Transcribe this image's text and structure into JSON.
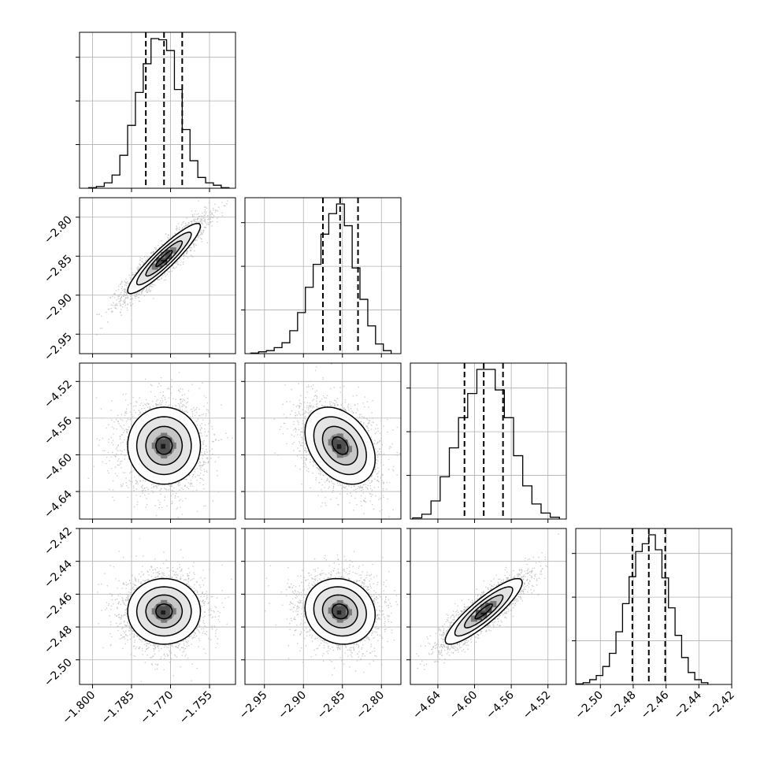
{
  "chart_data": {
    "type": "corner",
    "grid": true,
    "parameters": [
      {
        "range": [
          -1.805,
          -1.745
        ],
        "ticks": [
          -1.8,
          -1.785,
          -1.77,
          -1.755
        ],
        "tick_labels": [
          "−1.800",
          "−1.785",
          "−1.770",
          "−1.755"
        ],
        "quantiles": [
          -1.7795,
          -1.7725,
          -1.7655
        ],
        "histogram": {
          "bin_edges": [
            -1.8015,
            -1.7985,
            -1.7955,
            -1.7925,
            -1.7895,
            -1.7865,
            -1.7835,
            -1.7805,
            -1.7775,
            -1.7745,
            -1.7715,
            -1.7685,
            -1.7655,
            -1.7625,
            -1.7595,
            -1.7565,
            -1.7535,
            -1.7505,
            -1.7475
          ],
          "counts": [
            1,
            3,
            9,
            22,
            55,
            105,
            160,
            208,
            250,
            248,
            230,
            165,
            98,
            46,
            18,
            9,
            5,
            1
          ]
        }
      },
      {
        "range": [
          -2.975,
          -2.775
        ],
        "ticks": [
          -2.95,
          -2.9,
          -2.85,
          -2.8
        ],
        "tick_labels": [
          "−2.95",
          "−2.90",
          "−2.85",
          "−2.80"
        ],
        "quantiles": [
          -2.875,
          -2.853,
          -2.83
        ],
        "histogram": {
          "bin_edges": [
            -2.9675,
            -2.9575,
            -2.9475,
            -2.9375,
            -2.9275,
            -2.9175,
            -2.9075,
            -2.8975,
            -2.8875,
            -2.8775,
            -2.8675,
            -2.8575,
            -2.8475,
            -2.8375,
            -2.8275,
            -2.8175,
            -2.8075,
            -2.7975,
            -2.7875
          ],
          "counts": [
            1,
            3,
            5,
            10,
            18,
            38,
            68,
            110,
            148,
            198,
            232,
            248,
            212,
            142,
            90,
            46,
            16,
            5
          ]
        }
      },
      {
        "range": [
          -4.67,
          -4.5
        ],
        "ticks": [
          -4.64,
          -4.6,
          -4.56,
          -4.52
        ],
        "tick_labels": [
          "−4.64",
          "−4.60",
          "−4.56",
          "−4.52"
        ],
        "quantiles": [
          -4.611,
          -4.59,
          -4.569
        ],
        "histogram": {
          "bin_edges": [
            -4.6675,
            -4.6575,
            -4.6475,
            -4.6375,
            -4.6275,
            -4.6175,
            -4.6075,
            -4.5975,
            -4.5875,
            -4.5775,
            -4.5675,
            -4.5575,
            -4.5475,
            -4.5375,
            -4.5275,
            -4.5175,
            -4.5075
          ],
          "counts": [
            2,
            8,
            30,
            70,
            118,
            168,
            208,
            248,
            248,
            214,
            168,
            105,
            55,
            25,
            10,
            3
          ]
        }
      },
      {
        "range": [
          -2.515,
          -2.42
        ],
        "ticks": [
          -2.5,
          -2.48,
          -2.46,
          -2.44,
          -2.42
        ],
        "tick_labels": [
          "−2.50",
          "−2.48",
          "−2.46",
          "−2.44",
          "−2.42"
        ],
        "quantiles": [
          -2.4805,
          -2.4705,
          -2.4605
        ],
        "histogram": {
          "bin_edges": [
            -2.5145,
            -2.5105,
            -2.5065,
            -2.5025,
            -2.4985,
            -2.4945,
            -2.4905,
            -2.4865,
            -2.4825,
            -2.4785,
            -2.4745,
            -2.4705,
            -2.4665,
            -2.4625,
            -2.4585,
            -2.4545,
            -2.4505,
            -2.4465,
            -2.4425,
            -2.4385,
            -2.4345
          ],
          "counts": [
            1,
            3,
            8,
            15,
            30,
            52,
            88,
            135,
            180,
            222,
            235,
            250,
            225,
            178,
            128,
            82,
            45,
            20,
            8,
            3
          ]
        }
      }
    ],
    "pairs": [
      {
        "x": 0,
        "y": 1,
        "center": [
          -1.7725,
          -2.853
        ],
        "correlation": 0.92
      },
      {
        "x": 0,
        "y": 2,
        "center": [
          -1.7725,
          -4.59
        ],
        "correlation": 0.0
      },
      {
        "x": 1,
        "y": 2,
        "center": [
          -2.853,
          -4.59
        ],
        "correlation": -0.35
      },
      {
        "x": 0,
        "y": 3,
        "center": [
          -1.7725,
          -2.4705
        ],
        "correlation": 0.0
      },
      {
        "x": 1,
        "y": 3,
        "center": [
          -2.853,
          -2.4705
        ],
        "correlation": -0.1
      },
      {
        "x": 2,
        "y": 3,
        "center": [
          -4.59,
          -2.4705
        ],
        "correlation": 0.88
      }
    ]
  }
}
